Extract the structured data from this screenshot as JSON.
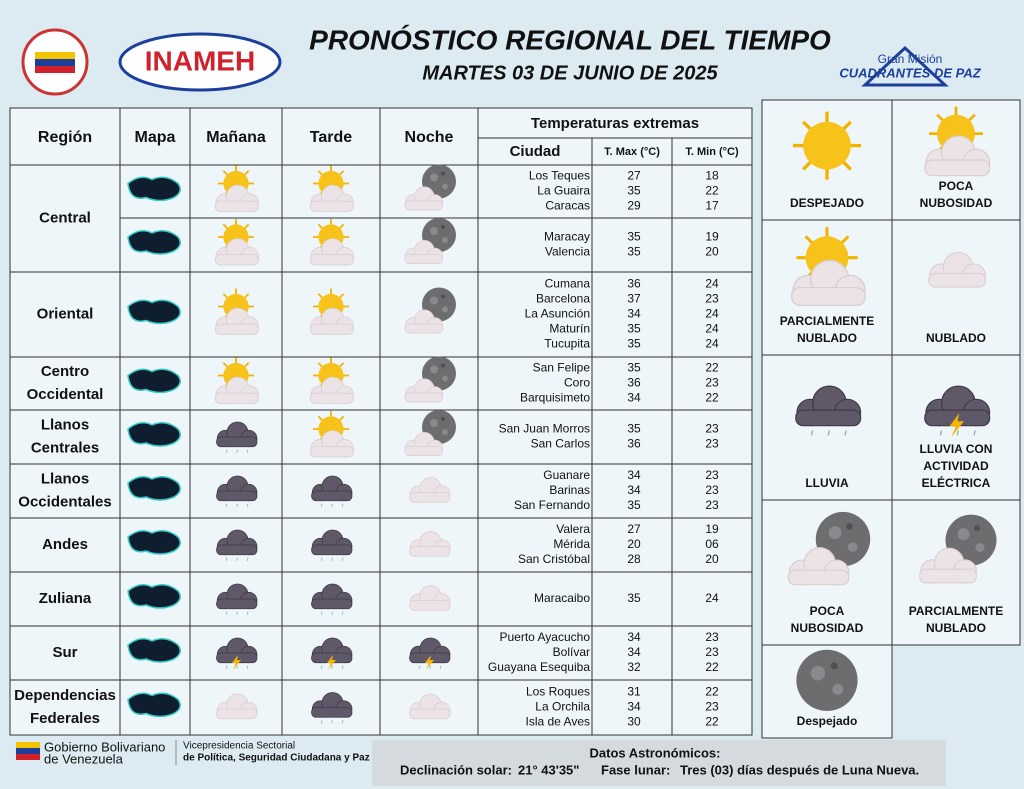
{
  "header": {
    "title": "PRONÓSTICO REGIONAL DEL TIEMPO",
    "date": "MARTES 03 DE JUNIO DE 2025",
    "logo_left": "INAMEH",
    "logo_right_top": "Gran Misión",
    "logo_right_bottom": "CUADRANTES DE PAZ"
  },
  "table": {
    "headers": [
      "Región",
      "Mapa",
      "Mañana",
      "Tarde",
      "Noche"
    ],
    "temps_header": "Temperaturas extremas",
    "temps_columns": [
      "Ciudad",
      "T. Max (°C)",
      "T. Min (°C)"
    ],
    "regions": [
      {
        "name": [
          "Central"
        ],
        "rows": [
          {
            "cities": [
              {
                "city": "Los Teques",
                "max": "27",
                "min": "18"
              },
              {
                "city": "La Guaira",
                "max": "35",
                "min": "22"
              },
              {
                "city": "Caracas",
                "max": "29",
                "min": "17"
              }
            ]
          },
          {
            "cities": [
              {
                "city": "Maracay",
                "max": "35",
                "min": "19"
              },
              {
                "city": "Valencia",
                "max": "35",
                "min": "20"
              }
            ]
          }
        ]
      },
      {
        "name": [
          "Oriental"
        ],
        "rows": [
          {
            "cities": [
              {
                "city": "Cumana",
                "max": "36",
                "min": "24"
              },
              {
                "city": "Barcelona",
                "max": "37",
                "min": "23"
              },
              {
                "city": "La Asunción",
                "max": "34",
                "min": "24"
              },
              {
                "city": "Maturín",
                "max": "35",
                "min": "24"
              },
              {
                "city": "Tucupita",
                "max": "35",
                "min": "24"
              }
            ]
          }
        ]
      },
      {
        "name": [
          "Centro",
          "Occidental"
        ],
        "rows": [
          {
            "cities": [
              {
                "city": "San Felipe",
                "max": "35",
                "min": "22"
              },
              {
                "city": "Coro",
                "max": "36",
                "min": "23"
              },
              {
                "city": "Barquisimeto",
                "max": "34",
                "min": "22"
              }
            ]
          }
        ]
      },
      {
        "name": [
          "Llanos",
          "Centrales"
        ],
        "rows": [
          {
            "cities": [
              {
                "city": "San Juan Morros",
                "max": "35",
                "min": "23"
              },
              {
                "city": "San Carlos",
                "max": "36",
                "min": "23"
              }
            ]
          }
        ]
      },
      {
        "name": [
          "Llanos",
          "Occidentales"
        ],
        "rows": [
          {
            "cities": [
              {
                "city": "Guanare",
                "max": "34",
                "min": "23"
              },
              {
                "city": "Barinas",
                "max": "34",
                "min": "23"
              },
              {
                "city": "San Fernando",
                "max": "35",
                "min": "23"
              }
            ]
          }
        ]
      },
      {
        "name": [
          "Andes"
        ],
        "rows": [
          {
            "cities": [
              {
                "city": "Valera",
                "max": "27",
                "min": "19"
              },
              {
                "city": "Mérida",
                "max": "20",
                "min": "06"
              },
              {
                "city": "San Cristóbal",
                "max": "28",
                "min": "20"
              }
            ]
          }
        ]
      },
      {
        "name": [
          "Zuliana"
        ],
        "rows": [
          {
            "cities": [
              {
                "city": "Maracaibo",
                "max": "35",
                "min": "24"
              }
            ]
          }
        ]
      },
      {
        "name": [
          "Sur"
        ],
        "rows": [
          {
            "cities": [
              {
                "city": "Puerto Ayacucho",
                "max": "34",
                "min": "23"
              },
              {
                "city": "Bolívar",
                "max": "34",
                "min": "23"
              },
              {
                "city": "Guayana Esequiba",
                "max": "32",
                "min": "22"
              }
            ]
          }
        ]
      },
      {
        "name": [
          "Dependencias",
          "Federales"
        ],
        "rows": [
          {
            "cities": [
              {
                "city": "Los Roques",
                "max": "31",
                "min": "22"
              },
              {
                "city": "La Orchila",
                "max": "34",
                "min": "23"
              },
              {
                "city": "Isla de Aves",
                "max": "30",
                "min": "22"
              }
            ]
          }
        ]
      }
    ]
  },
  "legend": [
    {
      "label": [
        "DESPEJADO"
      ]
    },
    {
      "label": [
        "POCA",
        "NUBOSIDAD"
      ]
    },
    {
      "label": [
        "PARCIALMENTE",
        "NUBLADO"
      ]
    },
    {
      "label": [
        "NUBLADO"
      ]
    },
    {
      "label": [
        "LLUVIA"
      ]
    },
    {
      "label": [
        "LLUVIA CON",
        "ACTIVIDAD",
        "ELÉCTRICA"
      ]
    },
    {
      "label": [
        "POCA",
        "NUBOSIDAD"
      ]
    },
    {
      "label": [
        "PARCIALMENTE",
        "NUBLADO"
      ]
    },
    {
      "label": [
        "Despejado"
      ]
    }
  ],
  "footer": {
    "gov_line1": "Gobierno Bolivariano",
    "gov_line2": "de Venezuela",
    "vp_line1": "Vicepresidencia Sectorial",
    "vp_line2": "de Política, Seguridad Ciudadana y Paz",
    "astro_title": "Datos Astronómicos:",
    "declination_label": "Declinación solar:",
    "declination_value": "21° 43'35\"",
    "moon_label": "Fase lunar:",
    "moon_value": "Tres (03) días después de Luna Nueva."
  }
}
